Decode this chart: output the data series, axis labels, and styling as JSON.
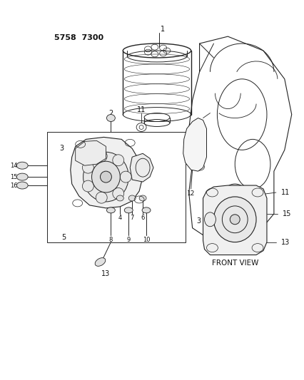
{
  "title": "5758  7300",
  "background_color": "#ffffff",
  "text_color": "#111111",
  "line_color": "#222222",
  "fig_width": 4.27,
  "fig_height": 5.33,
  "dpi": 100,
  "front_view_label": "FRONT VIEW"
}
